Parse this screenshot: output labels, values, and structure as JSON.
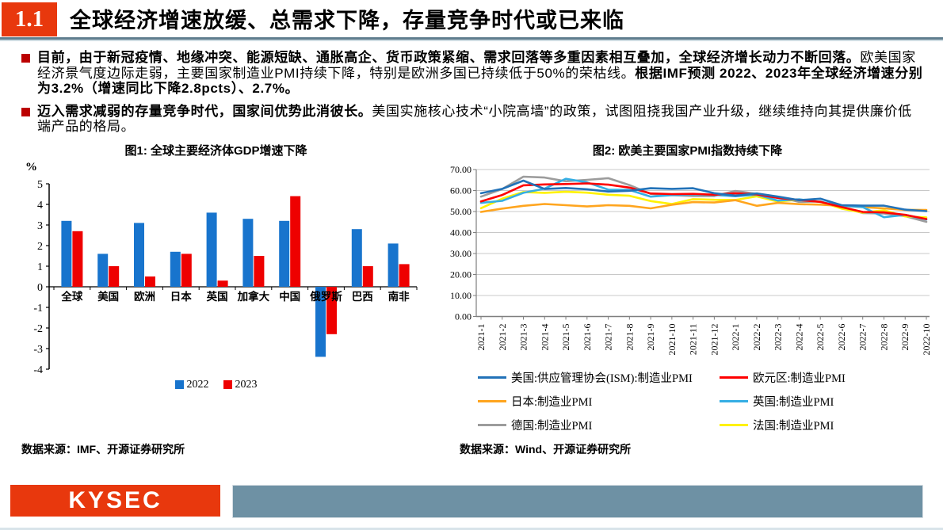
{
  "header": {
    "section": "1.1",
    "title": "全球经济增速放缓、总需求下降，存量竞争时代或已来临"
  },
  "bullets": [
    {
      "bold_lead": "目前，由于新冠疫情、地缘冲突、能源短缺、通胀高企、货币政策紧缩、需求回落等多重因素相互叠加，全球经济增长动力不断回落。",
      "normal": "欧美国家经济景气度边际走弱，主要国家制造业PMI持续下降，特别是欧洲多国已持续低于50%的荣枯线。",
      "bold_tail": "根据IMF预测 2022、2023年全球经济增速分别为3.2%（增速同比下降2.8pcts）、2.7%。"
    },
    {
      "bold_lead": "迈入需求减弱的存量竞争时代，国家间优势此消彼长。",
      "normal": "美国实施核心技术“小院高墙”的政策，试图阻挠我国产业升级，继续维持向其提供廉价低端产品的格局。",
      "bold_tail": ""
    }
  ],
  "chart_data": [
    {
      "type": "bar",
      "title": "图1: 全球主要经济体GDP增速下降",
      "ylabel": "%",
      "ylim": [
        -4,
        5
      ],
      "ytick_step": 1,
      "grid": false,
      "legend_position": "bottom",
      "categories": [
        "全球",
        "美国",
        "欧洲",
        "日本",
        "英国",
        "加拿大",
        "中国",
        "俄罗斯",
        "巴西",
        "南非"
      ],
      "series": [
        {
          "name": "2022",
          "color": "#1874CD",
          "values": [
            3.2,
            1.6,
            3.1,
            1.7,
            3.6,
            3.3,
            3.2,
            -3.4,
            2.8,
            2.1
          ]
        },
        {
          "name": "2023",
          "color": "#EE0000",
          "values": [
            2.7,
            1.0,
            0.5,
            1.6,
            0.3,
            1.5,
            4.4,
            -2.3,
            1.0,
            1.1
          ]
        }
      ]
    },
    {
      "type": "line",
      "title": "图2: 欧美主要国家PMI指数持续下降",
      "ylim": [
        0,
        70
      ],
      "ytick_step": 10,
      "ytick_decimals": 2,
      "grid": true,
      "legend_position": "bottom",
      "x": [
        "2021-1",
        "2021-2",
        "2021-3",
        "2021-4",
        "2021-5",
        "2021-6",
        "2021-7",
        "2021-8",
        "2021-9",
        "2021-10",
        "2021-11",
        "2021-12",
        "2022-1",
        "2022-2",
        "2022-3",
        "2022-4",
        "2022-5",
        "2022-6",
        "2022-7",
        "2022-8",
        "2022-9",
        "2022-10"
      ],
      "series": [
        {
          "name": "美国:供应管理协会(ISM):制造业PMI",
          "color": "#2272B8",
          "values": [
            58.7,
            60.8,
            64.7,
            60.7,
            61.2,
            60.6,
            59.5,
            59.9,
            61.1,
            60.8,
            61.1,
            58.7,
            57.6,
            58.6,
            57.1,
            55.4,
            56.1,
            53.0,
            52.8,
            52.8,
            50.9,
            50.2
          ]
        },
        {
          "name": "欧元区:制造业PMI",
          "color": "#FF0000",
          "values": [
            54.8,
            57.9,
            62.5,
            62.9,
            63.1,
            63.4,
            62.8,
            61.4,
            58.6,
            58.3,
            58.4,
            58.0,
            58.7,
            58.2,
            56.5,
            55.5,
            54.6,
            52.1,
            49.8,
            49.6,
            48.4,
            46.4
          ]
        },
        {
          "name": "日本:制造业PMI",
          "color": "#FFA51E",
          "values": [
            49.8,
            51.4,
            52.7,
            53.6,
            53.0,
            52.4,
            53.0,
            52.7,
            51.5,
            53.2,
            54.5,
            54.3,
            55.4,
            52.7,
            54.1,
            53.5,
            53.3,
            52.7,
            52.1,
            51.5,
            50.8,
            50.7
          ]
        },
        {
          "name": "英国:制造业PMI",
          "color": "#35AEE4",
          "values": [
            54.1,
            55.1,
            58.9,
            60.9,
            65.6,
            63.9,
            60.4,
            60.3,
            57.1,
            57.8,
            58.1,
            57.9,
            57.3,
            58.0,
            55.2,
            55.8,
            54.6,
            52.8,
            52.1,
            47.3,
            48.4,
            46.2
          ]
        },
        {
          "name": "德国:制造业PMI",
          "color": "#9C9C9C",
          "values": [
            57.1,
            60.7,
            66.6,
            66.2,
            64.4,
            65.1,
            65.9,
            62.6,
            58.4,
            57.8,
            57.4,
            57.4,
            59.8,
            58.4,
            56.9,
            54.6,
            54.8,
            52.0,
            49.3,
            49.1,
            47.8,
            45.1
          ]
        },
        {
          "name": "法国:制造业PMI",
          "color": "#FFF200",
          "values": [
            51.6,
            56.1,
            59.3,
            58.9,
            59.4,
            59.0,
            58.0,
            57.5,
            55.0,
            53.6,
            55.9,
            55.6,
            55.5,
            57.2,
            54.7,
            55.7,
            54.6,
            51.4,
            49.5,
            50.6,
            47.7,
            47.2
          ]
        }
      ]
    }
  ],
  "footer": {
    "left_source": "数据来源：IMF、开源证券研究所",
    "right_source": "数据来源：Wind、开源证券研究所",
    "logo": "KYSEC"
  },
  "colors": {
    "accent_red": "#E8380D",
    "bullet_red": "#BB0000",
    "header_divider": "#5F7D8E",
    "footer_bar": "#6E91A4",
    "gridline": "#C8C8C8"
  }
}
